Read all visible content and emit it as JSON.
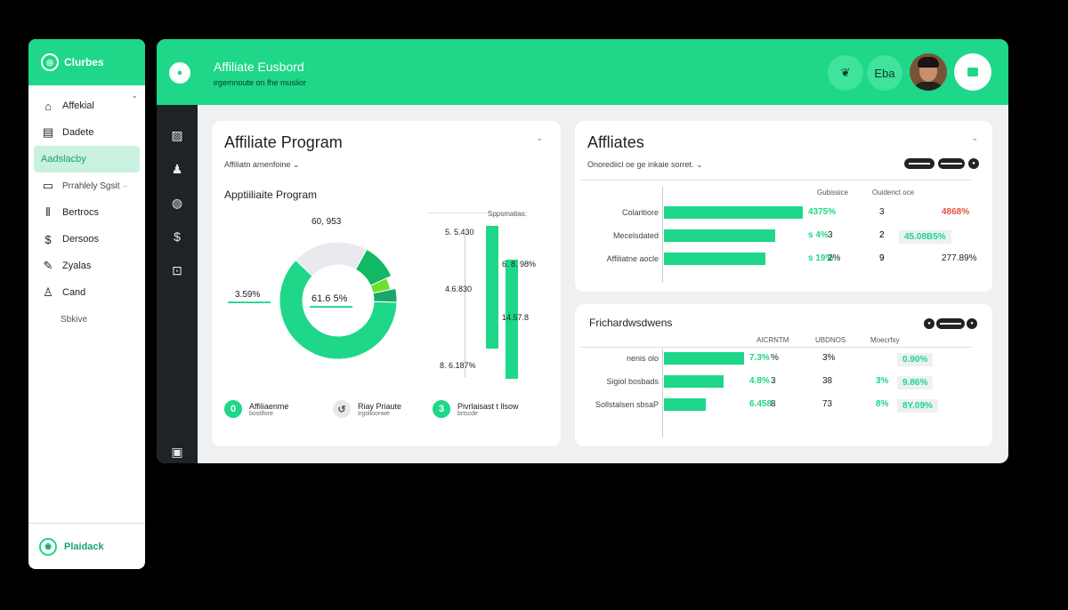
{
  "sidebar": {
    "brand": "Clurbes",
    "items": [
      {
        "label": "Affekial",
        "icon": "home-icon"
      },
      {
        "label": "Dadete",
        "icon": "document-icon"
      },
      {
        "label": "Aadslacby",
        "icon": "grid-icon"
      },
      {
        "label": "Prrahlely Sgsit",
        "icon": "folder-icon"
      },
      {
        "label": "Bertrocs",
        "icon": "chart-icon"
      },
      {
        "label": "Dersoos",
        "icon": "dollar-icon"
      },
      {
        "label": "Zyalas",
        "icon": "edit-icon"
      },
      {
        "label": "Cand",
        "icon": "user-icon"
      },
      {
        "label": "Sbkive",
        "icon": ""
      }
    ],
    "footer": "Plaidack"
  },
  "header": {
    "title": "Affiliate Eusbord",
    "subtitle": "irgemnoute on fhe muslior",
    "btn1": "❦",
    "btn2": "Eba"
  },
  "card1": {
    "title": "Affiliate  Program",
    "subtitle": "Affiliatn arnenfoine ⌄",
    "section": "Apptiiliaite Program",
    "donut_top": "60, 953",
    "donut_center": "61.6 5%",
    "donut_center_sub": "▬▬▬▬▬▬▬▬",
    "donut_left": "3.59%",
    "donut_left_sub": "▬▬▬▬▬▬▬▬",
    "bar_header": "Sppsmatias:",
    "bar_labels": [
      "5. 5.430",
      "6. 8. 98%",
      "4.6.830",
      "14.57.8",
      "8. 6.187%"
    ],
    "legend": [
      {
        "badge": "0",
        "title": "Affiliaenme",
        "sub": "bostifore"
      },
      {
        "badge": "↺",
        "title": "Riay Priaute",
        "sub": "Irgolloonwe"
      },
      {
        "badge": "3",
        "title": "Pivrlaisast t llsow",
        "sub": "brtscde"
      }
    ]
  },
  "card2": {
    "title": "Affliates",
    "subtitle": "Onorediicl oe ge inkaie sorret. ⌄",
    "pills": [
      "▬▬▬▬",
      "▬▬▬▬",
      "●"
    ],
    "cols": [
      "Gubissice",
      "Ouidenct oce"
    ],
    "rows": [
      {
        "label": "Colaritiore",
        "bar": "4375%",
        "a": "3",
        "b": "4868%",
        "b_style": "r"
      },
      {
        "label": "Mecelsdated",
        "bar": "s 4%",
        "a": "3",
        "b1": "2",
        "b": "45.08B5%",
        "b_style": "g"
      },
      {
        "label": "Affiliatne aocle",
        "bar": "s 19%",
        "a": "2%",
        "b1": "9",
        "b": "277.89%",
        "b_style": ""
      }
    ]
  },
  "card3": {
    "title": "Frichardwsdwens",
    "pills": [
      "●",
      "▬▬▬▬",
      "●"
    ],
    "cols": [
      "AICRNTM",
      "UBDNOS",
      "Moecrfsy"
    ],
    "rows": [
      {
        "label": "nenis olo",
        "bar": "7.3%",
        "a": "%",
        "b": "3%",
        "c": "0.90%"
      },
      {
        "label": "Sigiol bosbads",
        "bar": "4.8%",
        "a": "3",
        "b": "38",
        "b2": "3%",
        "c": "9.86%"
      },
      {
        "label": "Sollstalsen sbsaP",
        "bar": "6.458",
        "a": "8",
        "b": "73",
        "b2": "8%",
        "c": "8Y.09%"
      }
    ]
  },
  "chart_data": [
    {
      "type": "pie",
      "title": "Apptiiliaite Program",
      "slices": [
        {
          "label": "Affiliaenme",
          "value": 61.65
        },
        {
          "label": "Riay Priaute",
          "value": 21
        },
        {
          "label": "Pivrlaisast t llsow",
          "value": 10
        },
        {
          "label": "",
          "value": 3.59
        },
        {
          "label": "",
          "value": 3.76
        }
      ],
      "colors": [
        "#1ed788",
        "#e8eaed",
        "#12b865",
        "#6ee02c",
        "#1aa86a"
      ]
    },
    {
      "type": "bar",
      "orientation": "vertical",
      "title": "Sppsmatias:",
      "categories": [
        "a",
        "b"
      ],
      "values": [
        90,
        72
      ]
    },
    {
      "type": "bar",
      "orientation": "horizontal",
      "title": "Affliates",
      "categories": [
        "Colaritiore",
        "Mecelsdated",
        "Affiliatne aocle"
      ],
      "values": [
        100,
        80,
        73
      ]
    },
    {
      "type": "bar",
      "orientation": "horizontal",
      "title": "Frichardwsdwens",
      "categories": [
        "nenis olo",
        "Sigiol bosbads",
        "Sollstalsen sbsaP"
      ],
      "values": [
        100,
        74,
        52
      ]
    }
  ]
}
